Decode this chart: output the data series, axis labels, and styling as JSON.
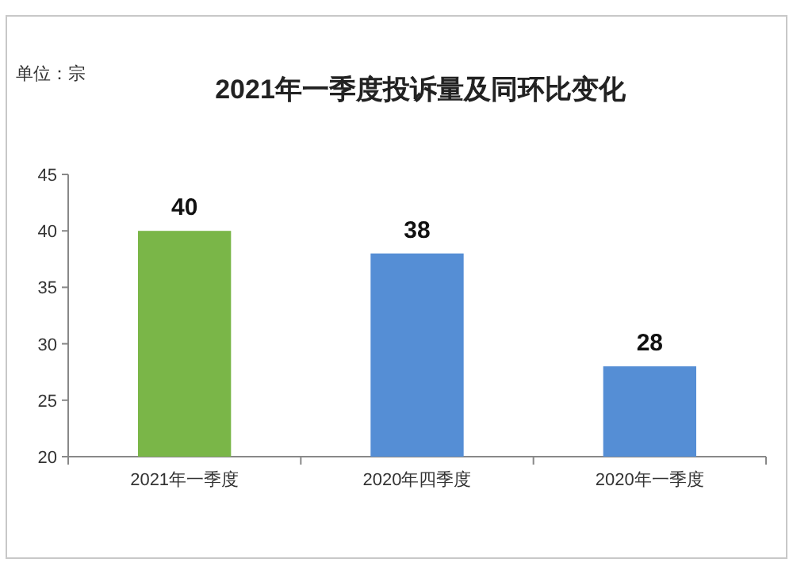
{
  "chart_data": {
    "type": "bar",
    "title": "2021年一季度投诉量及同环比变化",
    "annotations": [
      "单位：宗"
    ],
    "categories": [
      "2021年一季度",
      "2020年四季度",
      "2020年一季度"
    ],
    "values": [
      40,
      38,
      28
    ],
    "colors": [
      "#7ab648",
      "#558ed5",
      "#558ed5"
    ],
    "ylim": [
      20,
      45
    ],
    "yticks": [
      20,
      25,
      30,
      35,
      40,
      45
    ],
    "data_labels": true
  }
}
